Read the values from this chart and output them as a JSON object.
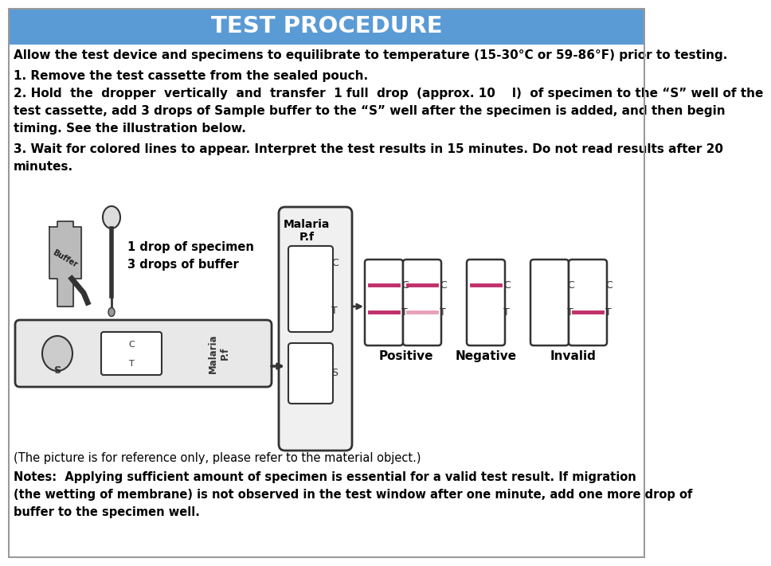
{
  "title": "TEST PROCEDURE",
  "title_bg": "#5b9bd5",
  "title_color": "#ffffff",
  "body_bg": "#ffffff",
  "text_color": "#000000",
  "line0": "Allow the test device and specimens to equilibrate to temperature (15-30°C or 59-86°F) prior to testing.",
  "line1": "1. Remove the test cassette from the sealed pouch.",
  "line2a": "2. Hold  the  dropper  vertically  and  transfer  1 full  drop  (approx. 10    l)  of specimen to the “S” well of the",
  "line2b": "test cassette, add 3 drops of Sample buffer to the “S” well after the specimen is added, and then begin",
  "line2c": "timing. See the illustration below.",
  "line3a": "3. Wait for colored lines to appear. Interpret the test results in 15 minutes. Do not read results after 20",
  "line3b": "minutes.",
  "note1": "(The picture is for reference only, please refer to the material object.)",
  "note2": "Notes:  Applying sufficient amount of specimen is essential for a valid test result. If migration",
  "note3": "(the wetting of membrane) is not observed in the test window after one minute, add one more drop of",
  "note4": "buffer to the specimen well.",
  "label_drop": "1 drop of specimen",
  "label_buffer": "3 drops of buffer",
  "label_malaria": "Malaria",
  "label_pf": "P.f",
  "label_positive": "Positive",
  "label_negative": "Negative",
  "label_invalid": "Invalid",
  "pink_color": "#c0306a",
  "pink_light": "#e8a0b8",
  "border_color": "#333333",
  "cassette_fill": "#f5f5f5"
}
